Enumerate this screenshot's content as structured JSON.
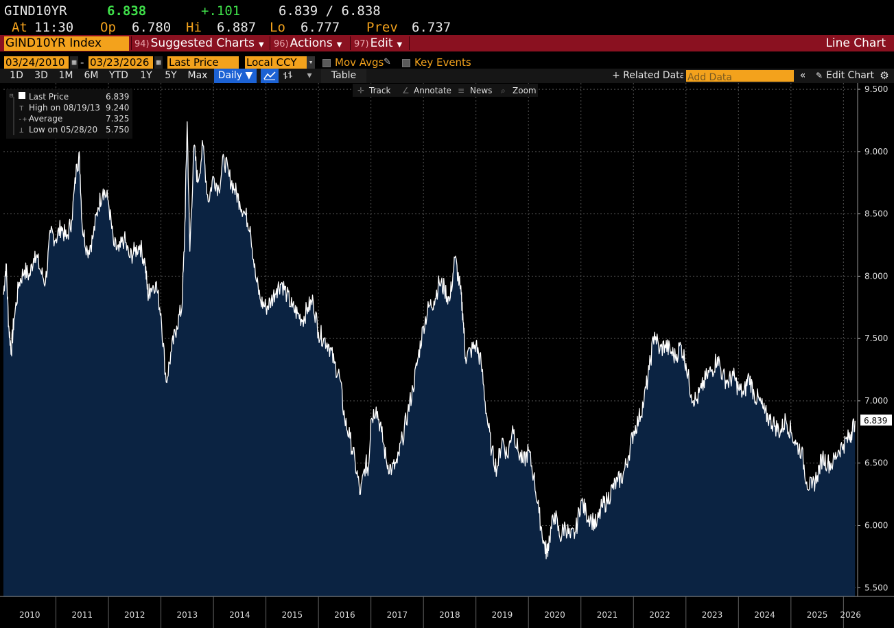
{
  "quote": {
    "ticker": "GIND10YR",
    "last": "6.838",
    "change": "+.101",
    "bid_ask": "6.839 / 6.838",
    "at_label": "At",
    "time": "11:30",
    "open_label": "Op",
    "open": "6.780",
    "high_label": "Hi",
    "high": "6.887",
    "low_label": "Lo",
    "low": "6.777",
    "prev_label": "Prev",
    "prev": "6.737"
  },
  "toolbar": {
    "security": "GIND10YR Index",
    "suggested_num": "94)",
    "suggested": "Suggested Charts",
    "actions_num": "96)",
    "actions": "Actions",
    "edit_num": "97)",
    "edit": "Edit",
    "chart_type": "Line Chart"
  },
  "settings": {
    "start_date": "03/24/2010",
    "end_date": "03/23/2026",
    "date_sep": "-",
    "field": "Last Price",
    "currency": "Local CCY",
    "mov_avgs": "Mov Avgs",
    "key_events": "Key Events"
  },
  "ranges": {
    "items": [
      "1D",
      "3D",
      "1M",
      "6M",
      "YTD",
      "1Y",
      "5Y",
      "Max"
    ],
    "frequency": "Daily ▼",
    "table": "Table",
    "related": "+ Related Data",
    "add_data_placeholder": "Add Data",
    "edit_chart": "Edit Chart"
  },
  "tools": {
    "track": "Track",
    "annotate": "Annotate",
    "news": "News",
    "zoom": "Zoom"
  },
  "legend": {
    "last_label": "Last Price",
    "last_value": "6.839",
    "high_label": "High on 08/19/13",
    "high_value": "9.240",
    "avg_label": "Average",
    "avg_value": "7.325",
    "low_label": "Low on 05/28/20",
    "low_value": "5.750"
  },
  "colors": {
    "accent_orange": "#f3a21c",
    "toolbar_red": "#8a1120",
    "area_fill": "#0b2342",
    "line": "#ffffff",
    "positive": "#3fe04a"
  },
  "chart_data": {
    "type": "area",
    "xlabel": "",
    "ylabel": "",
    "ylim": [
      5.43,
      9.55
    ],
    "yticks": [
      5.5,
      6.0,
      6.5,
      7.0,
      7.5,
      8.0,
      8.5,
      9.0,
      9.5
    ],
    "ytick_labels": [
      "5.500",
      "6.000",
      "6.500",
      "7.000",
      "7.500",
      "8.000",
      "8.500",
      "9.000",
      "9.500"
    ],
    "xlim": [
      2010.0,
      2026.27
    ],
    "year_labels": [
      "2010",
      "2011",
      "2012",
      "2013",
      "2014",
      "2015",
      "2016",
      "2017",
      "2018",
      "2019",
      "2020",
      "2021",
      "2022",
      "2023",
      "2024",
      "2025",
      "2026"
    ],
    "grid": true,
    "last_value_label": "6.839",
    "series": [
      {
        "x": [
          2010.0,
          2010.05,
          2010.1,
          2010.15,
          2010.2,
          2010.3,
          2010.4,
          2010.5,
          2010.6,
          2010.7,
          2010.8,
          2010.9,
          2011.0,
          2011.1,
          2011.2,
          2011.3,
          2011.4,
          2011.45,
          2011.5,
          2011.6,
          2011.7,
          2011.8,
          2011.9,
          2012.0,
          2012.1,
          2012.2,
          2012.3,
          2012.4,
          2012.5,
          2012.6,
          2012.7,
          2012.75,
          2012.8,
          2012.9,
          2013.0,
          2013.1,
          2013.2,
          2013.3,
          2013.4,
          2013.45,
          2013.5,
          2013.55,
          2013.63,
          2013.7,
          2013.8,
          2013.9,
          2014.0,
          2014.1,
          2014.2,
          2014.3,
          2014.4,
          2014.5,
          2014.6,
          2014.7,
          2014.8,
          2014.9,
          2015.0,
          2015.1,
          2015.2,
          2015.3,
          2015.4,
          2015.5,
          2015.6,
          2015.7,
          2015.8,
          2015.9,
          2016.0,
          2016.1,
          2016.2,
          2016.3,
          2016.4,
          2016.5,
          2016.6,
          2016.7,
          2016.8,
          2016.9,
          2016.95,
          2017.0,
          2017.1,
          2017.2,
          2017.3,
          2017.4,
          2017.5,
          2017.6,
          2017.7,
          2017.8,
          2017.9,
          2018.0,
          2018.1,
          2018.2,
          2018.3,
          2018.4,
          2018.5,
          2018.6,
          2018.7,
          2018.75,
          2018.8,
          2018.9,
          2019.0,
          2019.1,
          2019.2,
          2019.3,
          2019.4,
          2019.5,
          2019.6,
          2019.7,
          2019.8,
          2019.9,
          2020.0,
          2020.1,
          2020.2,
          2020.3,
          2020.35,
          2020.4,
          2020.5,
          2020.6,
          2020.7,
          2020.8,
          2020.9,
          2021.0,
          2021.1,
          2021.2,
          2021.3,
          2021.4,
          2021.5,
          2021.6,
          2021.7,
          2021.8,
          2021.9,
          2022.0,
          2022.1,
          2022.2,
          2022.3,
          2022.4,
          2022.5,
          2022.6,
          2022.7,
          2022.8,
          2022.9,
          2023.0,
          2023.1,
          2023.2,
          2023.3,
          2023.4,
          2023.5,
          2023.6,
          2023.7,
          2023.8,
          2023.9,
          2024.0,
          2024.1,
          2024.2,
          2024.3,
          2024.4,
          2024.5,
          2024.6,
          2024.7,
          2024.8,
          2024.9,
          2025.0,
          2025.1,
          2025.2,
          2025.3,
          2025.4,
          2025.5,
          2025.6,
          2025.7,
          2025.8,
          2025.9,
          2026.0,
          2026.1,
          2026.15,
          2026.22
        ],
        "y": [
          7.85,
          8.1,
          7.6,
          7.4,
          7.65,
          7.95,
          8.05,
          8.0,
          8.2,
          8.05,
          7.95,
          8.35,
          8.3,
          8.4,
          8.3,
          8.45,
          8.9,
          8.95,
          8.4,
          8.2,
          8.3,
          8.55,
          8.7,
          8.6,
          8.25,
          8.2,
          8.3,
          8.15,
          8.2,
          8.25,
          8.1,
          7.85,
          7.9,
          7.95,
          7.7,
          7.15,
          7.4,
          7.6,
          7.75,
          8.3,
          9.24,
          8.2,
          9.05,
          8.75,
          9.05,
          8.6,
          8.8,
          8.7,
          8.95,
          8.8,
          8.7,
          8.6,
          8.5,
          8.4,
          8.0,
          7.8,
          7.75,
          7.8,
          7.9,
          7.95,
          7.85,
          7.75,
          7.7,
          7.65,
          7.75,
          7.8,
          7.55,
          7.5,
          7.45,
          7.3,
          7.2,
          6.85,
          6.7,
          6.5,
          6.25,
          6.5,
          6.45,
          6.85,
          6.95,
          6.75,
          6.5,
          6.45,
          6.5,
          6.7,
          6.9,
          7.1,
          7.35,
          7.6,
          7.75,
          7.8,
          7.95,
          7.9,
          7.8,
          8.15,
          7.9,
          7.7,
          7.35,
          7.4,
          7.45,
          7.3,
          6.9,
          6.6,
          6.45,
          6.7,
          6.55,
          6.8,
          6.6,
          6.5,
          6.6,
          6.4,
          6.1,
          5.85,
          5.78,
          5.9,
          6.1,
          5.9,
          6.0,
          5.9,
          5.95,
          6.2,
          6.1,
          6.05,
          6.0,
          6.15,
          6.2,
          6.3,
          6.35,
          6.4,
          6.55,
          6.75,
          6.85,
          7.0,
          7.25,
          7.55,
          7.4,
          7.45,
          7.4,
          7.35,
          7.45,
          7.3,
          7.05,
          7.0,
          7.1,
          7.2,
          7.25,
          7.35,
          7.2,
          7.15,
          7.2,
          7.1,
          7.05,
          7.2,
          7.05,
          7.0,
          6.9,
          6.85,
          6.8,
          6.75,
          6.85,
          6.75,
          6.65,
          6.6,
          6.35,
          6.3,
          6.4,
          6.55,
          6.5,
          6.5,
          6.6,
          6.65,
          6.7,
          6.75,
          6.84
        ]
      }
    ]
  }
}
